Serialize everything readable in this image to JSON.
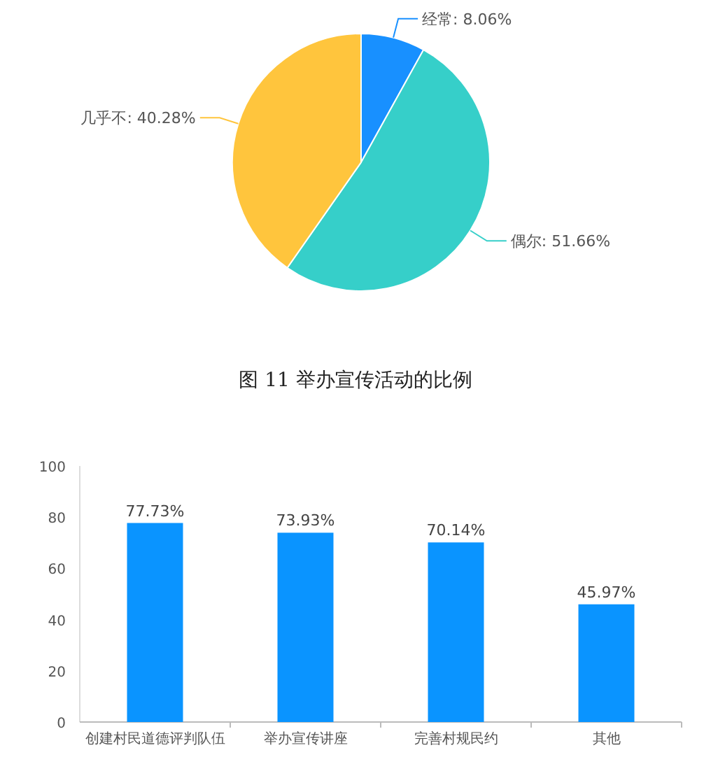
{
  "chart_data": [
    {
      "type": "pie",
      "categories": [
        "经常",
        "偶尔",
        "几乎不"
      ],
      "values": [
        8.06,
        51.66,
        40.28
      ],
      "value_labels": [
        "8.06%",
        "51.66%",
        "40.28%"
      ],
      "colors": [
        "#1890ff",
        "#36cfc9",
        "#ffc53d"
      ],
      "annotations": [
        "图 11 举办宣传活动的比例"
      ]
    },
    {
      "type": "bar",
      "categories": [
        "创建村民道德评判队伍",
        "举办宣传讲座",
        "完善村规民约",
        "其他"
      ],
      "values": [
        77.73,
        73.93,
        70.14,
        45.97
      ],
      "value_labels": [
        "77.73%",
        "73.93%",
        "70.14%",
        "45.97%"
      ],
      "color": "#0a94ff",
      "ylim": [
        0,
        100
      ],
      "yticks": [
        0,
        20,
        40,
        60,
        80,
        100
      ],
      "grid": false
    }
  ]
}
